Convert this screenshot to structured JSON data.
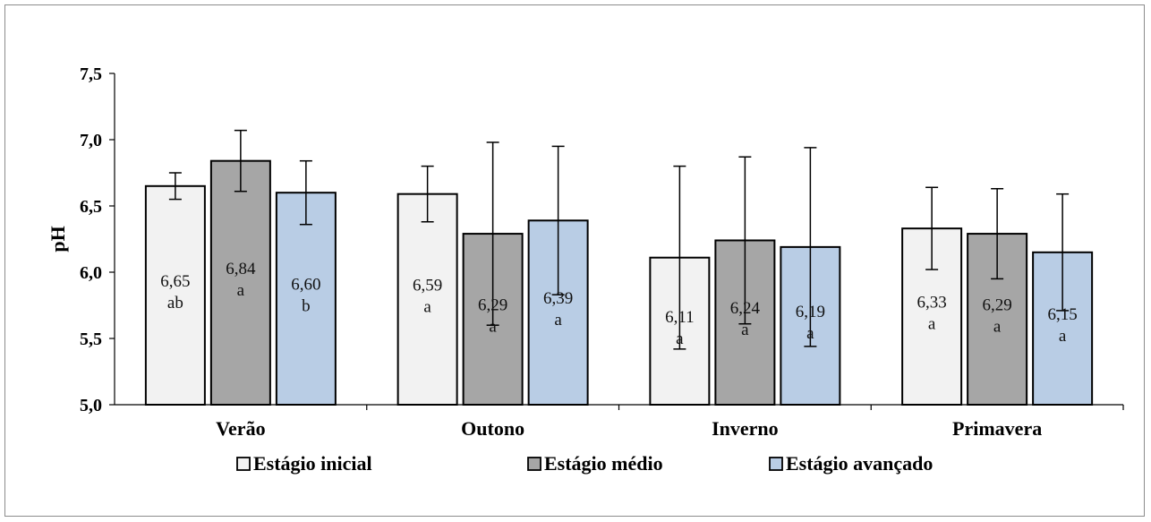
{
  "chart_data": {
    "type": "bar",
    "ylabel": "pH",
    "ylim": [
      5.0,
      7.5
    ],
    "yticks": [
      "5,0",
      "5,5",
      "6,0",
      "6,5",
      "7,0",
      "7,5"
    ],
    "yticks_values": [
      5.0,
      5.5,
      6.0,
      6.5,
      7.0,
      7.5
    ],
    "categories": [
      "Verão",
      "Outono",
      "Inverno",
      "Primavera"
    ],
    "legend_position": "bottom",
    "grid": false,
    "series": [
      {
        "name": "Estágio inicial",
        "color": "#f2f2f2",
        "values": [
          6.65,
          6.59,
          6.11,
          6.33
        ],
        "errors": [
          0.1,
          0.21,
          0.69,
          0.31
        ],
        "labels": [
          "6,65",
          "6,59",
          "6,11",
          "6,33"
        ],
        "letters": [
          "ab",
          "a",
          "a",
          "a"
        ]
      },
      {
        "name": "Estágio médio",
        "color": "#a6a6a6",
        "values": [
          6.84,
          6.29,
          6.24,
          6.29
        ],
        "errors": [
          0.23,
          0.69,
          0.63,
          0.34
        ],
        "labels": [
          "6,84",
          "6,29",
          "6,24",
          "6,29"
        ],
        "letters": [
          "a",
          "a",
          "a",
          "a"
        ]
      },
      {
        "name": "Estágio avançado",
        "color": "#b9cde5",
        "values": [
          6.6,
          6.39,
          6.19,
          6.15
        ],
        "errors": [
          0.24,
          0.56,
          0.75,
          0.44
        ],
        "labels": [
          "6,60",
          "6,39",
          "6,19",
          "6,15"
        ],
        "letters": [
          "b",
          "a",
          "a",
          "a"
        ]
      }
    ]
  }
}
